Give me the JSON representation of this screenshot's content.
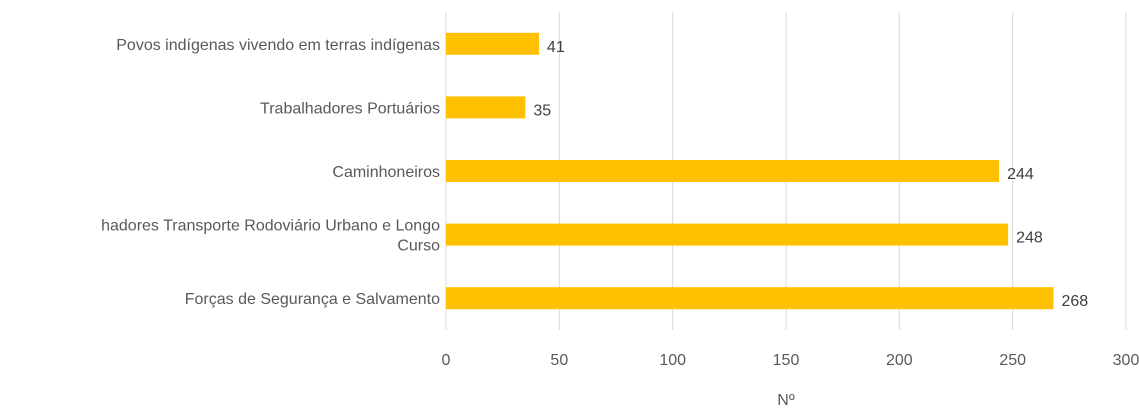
{
  "chart_data": {
    "type": "bar",
    "orientation": "horizontal",
    "categories": [
      "Povos indígenas vivendo em terras indígenas",
      "Trabalhadores Portuários",
      "Caminhoneiros",
      "hadores Transporte Rodoviário Urbano e Longo Curso",
      "Forças de Segurança e Salvamento"
    ],
    "category_lines": [
      [
        "Povos indígenas vivendo em terras indígenas"
      ],
      [
        "Trabalhadores Portuários"
      ],
      [
        "Caminhoneiros"
      ],
      [
        "hadores Transporte Rodoviário Urbano e Longo",
        "Curso"
      ],
      [
        "Forças de Segurança e Salvamento"
      ]
    ],
    "values": [
      41,
      35,
      244,
      248,
      268
    ],
    "data_labels": [
      "41",
      "35",
      "244",
      "248",
      "268"
    ],
    "title": "",
    "xlabel": "Nº",
    "ylabel": "",
    "xlim": [
      0,
      300
    ],
    "xticks": [
      0,
      50,
      100,
      150,
      200,
      250,
      300
    ],
    "xtick_labels": [
      "0",
      "50",
      "100",
      "150",
      "200",
      "250",
      "300"
    ],
    "grid": true,
    "legend": "none",
    "colors": {
      "bar": "#FFC000",
      "grid": "#D9D9D9",
      "text": "#595959",
      "data_label": "#404040"
    }
  }
}
